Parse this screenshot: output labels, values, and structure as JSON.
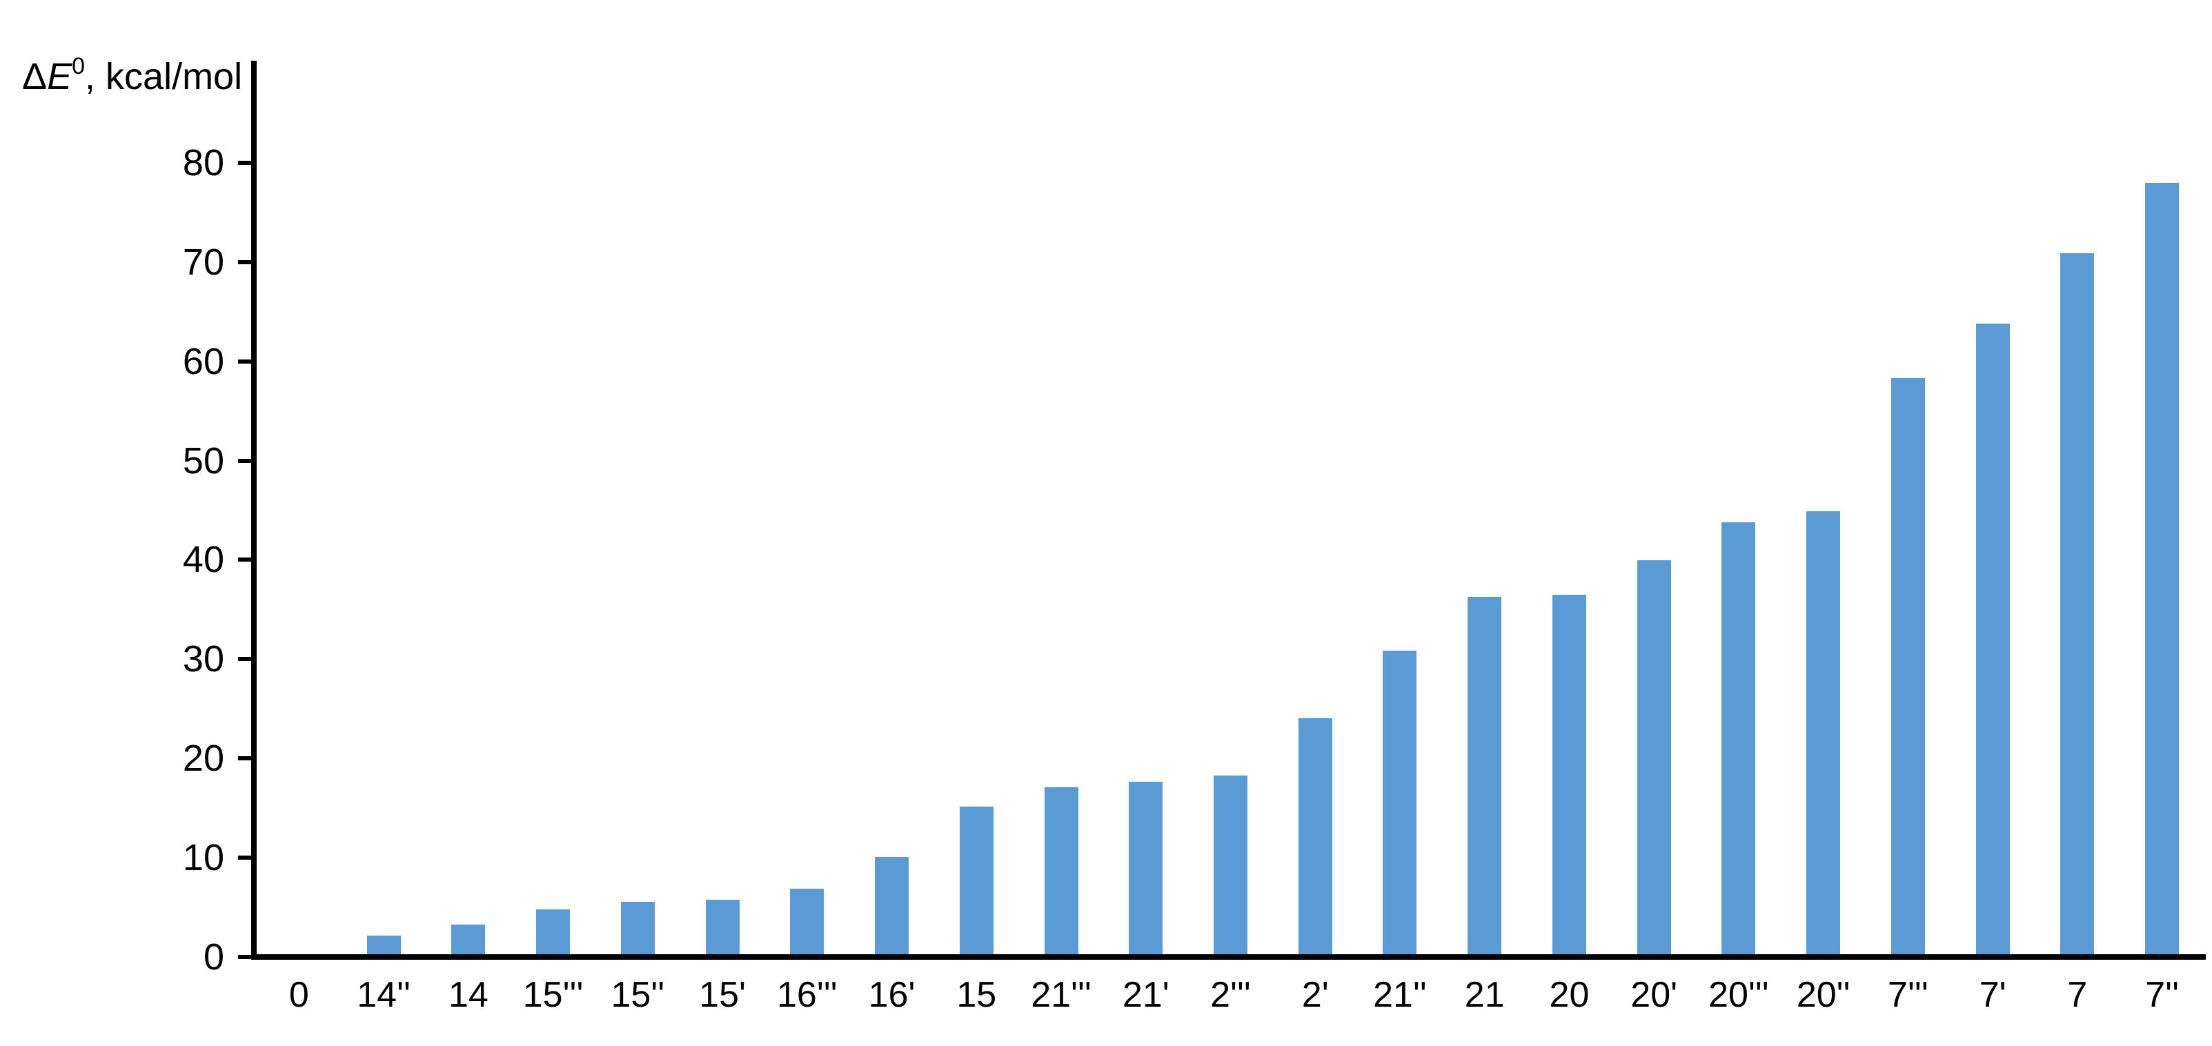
{
  "chart_data": {
    "type": "bar",
    "title": "",
    "ylabel": "ΔE0, kcal/mol",
    "y_axis_title": {
      "delta": "Δ",
      "variable": "E",
      "superscript": "0",
      "suffix": ", kcal/mol"
    },
    "xlabel": "",
    "categories": [
      "0",
      "14''",
      "14",
      "15'''",
      "15''",
      "15'",
      "16'''",
      "16'",
      "15",
      "21'''",
      "21'",
      "2'''",
      "2'",
      "21''",
      "21",
      "20",
      "20'",
      "20'''",
      "20''",
      "7'''",
      "7'",
      "7",
      "7''"
    ],
    "values": [
      0,
      1.9,
      3.0,
      4.5,
      5.3,
      5.5,
      6.6,
      9.8,
      14.9,
      16.8,
      17.4,
      18.0,
      23.8,
      30.6,
      36.0,
      36.2,
      39.7,
      43.5,
      44.6,
      58.0,
      63.5,
      70.6,
      77.7
    ],
    "ylim": [
      0,
      90
    ],
    "yticks": [
      0,
      10,
      20,
      30,
      40,
      50,
      60,
      70,
      80
    ],
    "bar_color": "#5B9BD5",
    "axis_color": "#000000",
    "grid": false,
    "legend": false
  }
}
